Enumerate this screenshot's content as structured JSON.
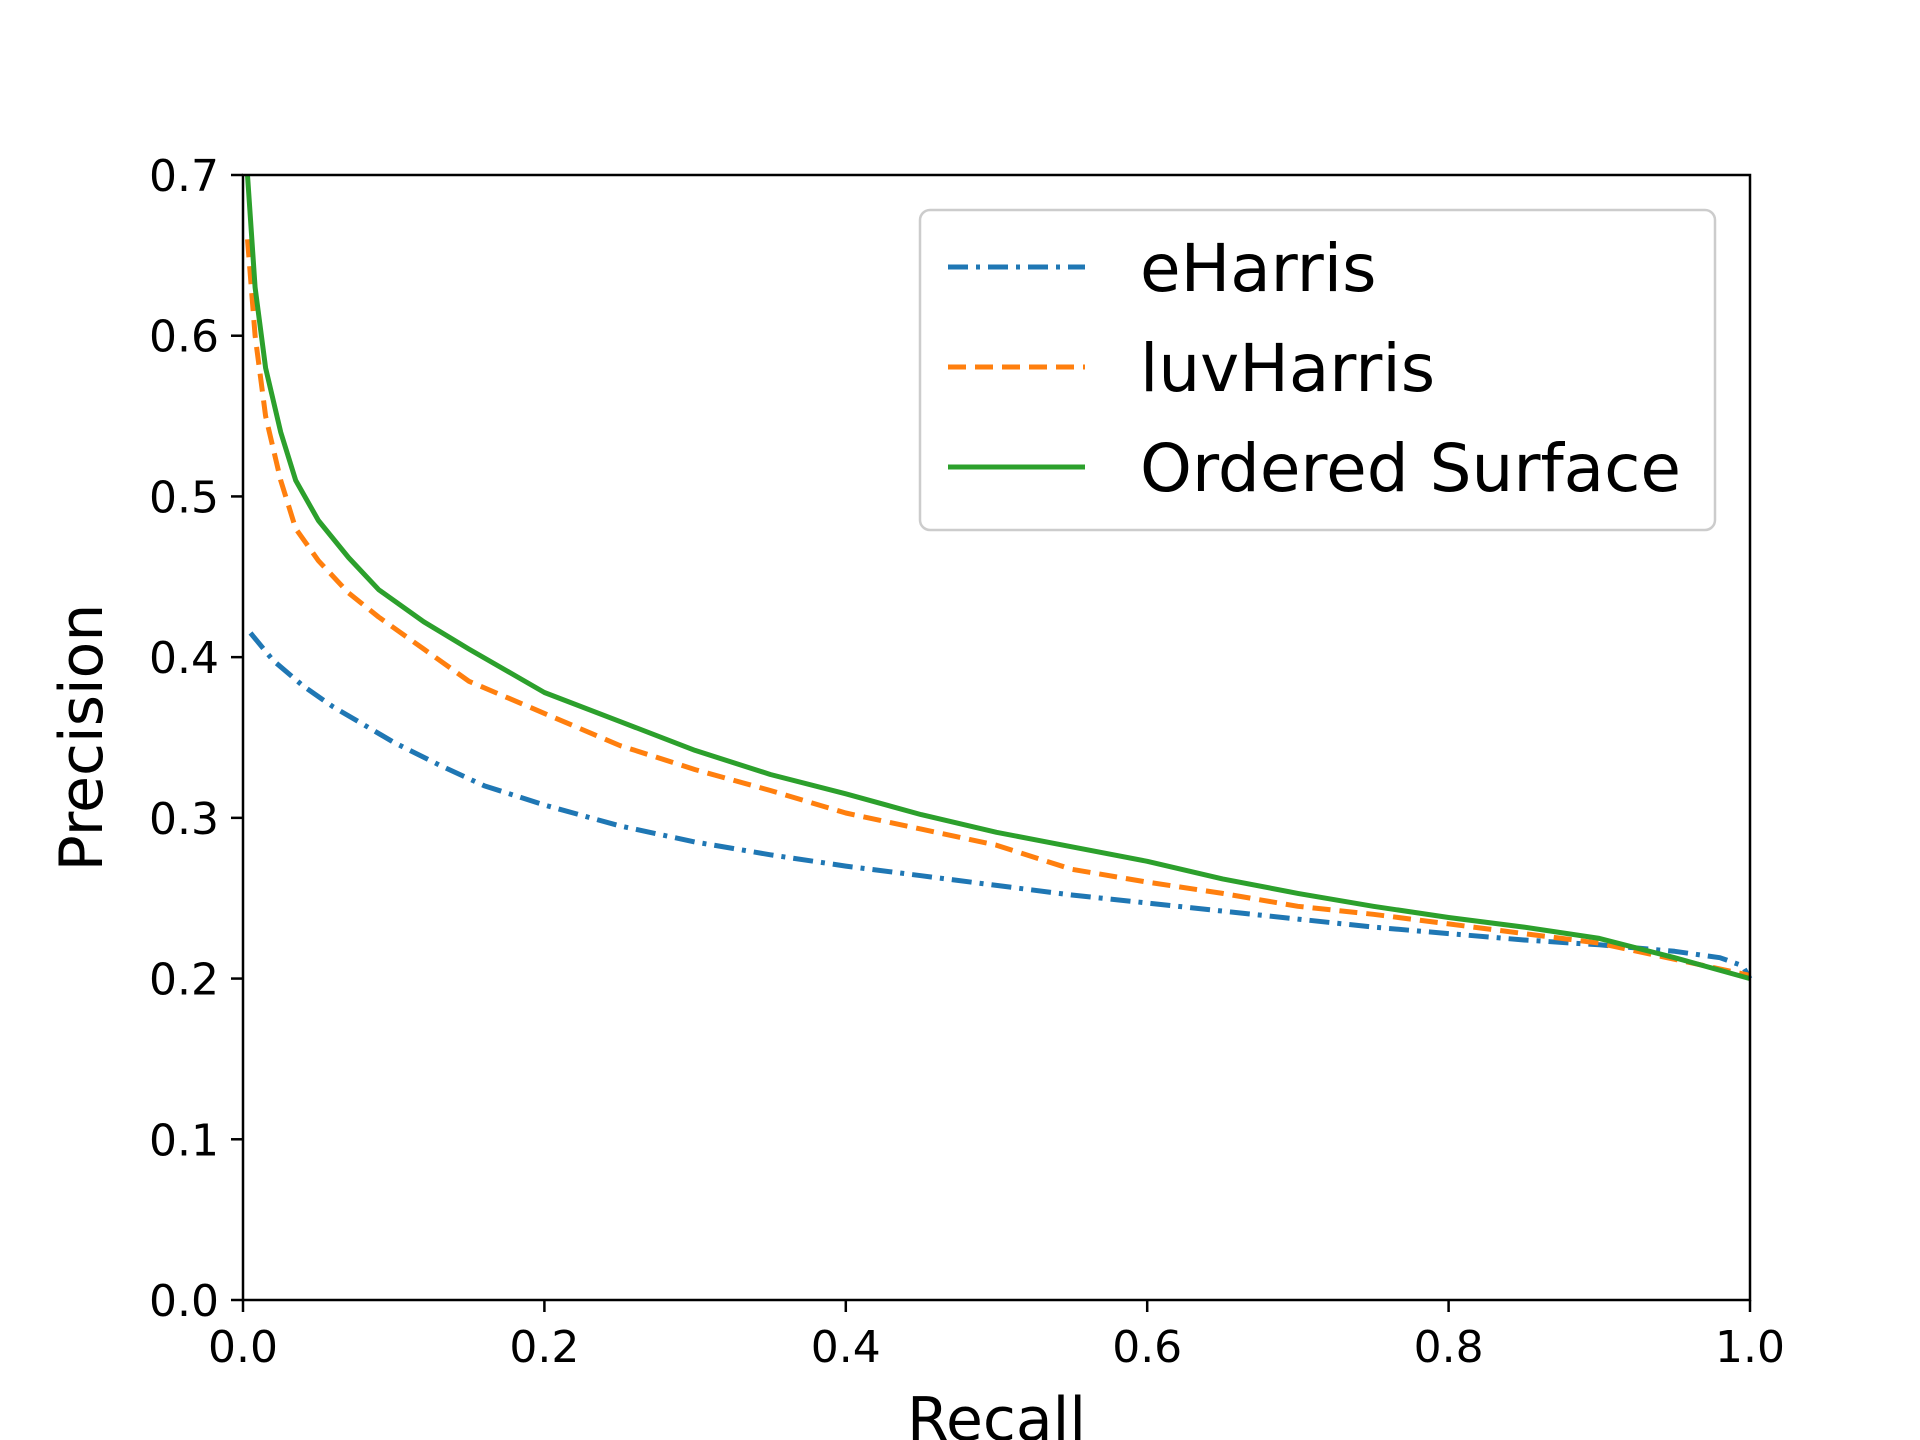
{
  "chart_data": {
    "type": "line",
    "xlabel": "Recall",
    "ylabel": "Precision",
    "xlim": [
      0.0,
      1.0
    ],
    "ylim": [
      0.0,
      0.7
    ],
    "xticks": [
      "0.0",
      "0.2",
      "0.4",
      "0.6",
      "0.8",
      "1.0"
    ],
    "yticks": [
      "0.0",
      "0.1",
      "0.2",
      "0.3",
      "0.4",
      "0.5",
      "0.6",
      "0.7"
    ],
    "grid": false,
    "legend_position": "top-right",
    "series": [
      {
        "name": "eHarris",
        "color": "#1f77b4",
        "style": "dashdot",
        "x": [
          0.005,
          0.02,
          0.04,
          0.06,
          0.08,
          0.1,
          0.13,
          0.16,
          0.2,
          0.25,
          0.3,
          0.35,
          0.4,
          0.45,
          0.5,
          0.55,
          0.6,
          0.65,
          0.7,
          0.75,
          0.8,
          0.85,
          0.9,
          0.95,
          0.98,
          0.995,
          1.0
        ],
        "y": [
          0.415,
          0.398,
          0.382,
          0.369,
          0.358,
          0.347,
          0.333,
          0.32,
          0.308,
          0.295,
          0.285,
          0.277,
          0.27,
          0.264,
          0.258,
          0.252,
          0.247,
          0.242,
          0.237,
          0.232,
          0.228,
          0.224,
          0.221,
          0.217,
          0.213,
          0.208,
          0.2
        ]
      },
      {
        "name": "luvHarris",
        "color": "#ff7f0e",
        "style": "dashed",
        "x": [
          0.003,
          0.008,
          0.015,
          0.025,
          0.035,
          0.05,
          0.07,
          0.09,
          0.12,
          0.15,
          0.2,
          0.25,
          0.3,
          0.35,
          0.4,
          0.45,
          0.5,
          0.55,
          0.6,
          0.65,
          0.7,
          0.75,
          0.8,
          0.85,
          0.9,
          0.95,
          1.0
        ],
        "y": [
          0.66,
          0.6,
          0.55,
          0.51,
          0.48,
          0.46,
          0.44,
          0.425,
          0.405,
          0.385,
          0.365,
          0.345,
          0.33,
          0.317,
          0.303,
          0.293,
          0.283,
          0.268,
          0.26,
          0.253,
          0.245,
          0.24,
          0.234,
          0.228,
          0.222,
          0.212,
          0.202
        ]
      },
      {
        "name": "Ordered Surface",
        "color": "#2ca02c",
        "style": "solid",
        "x": [
          0.003,
          0.008,
          0.015,
          0.025,
          0.035,
          0.05,
          0.07,
          0.09,
          0.12,
          0.15,
          0.2,
          0.25,
          0.3,
          0.35,
          0.4,
          0.45,
          0.5,
          0.55,
          0.6,
          0.65,
          0.7,
          0.75,
          0.8,
          0.85,
          0.9,
          0.95,
          1.0
        ],
        "y": [
          0.7,
          0.63,
          0.58,
          0.54,
          0.51,
          0.485,
          0.462,
          0.442,
          0.422,
          0.405,
          0.378,
          0.36,
          0.342,
          0.327,
          0.315,
          0.302,
          0.291,
          0.282,
          0.273,
          0.262,
          0.253,
          0.245,
          0.238,
          0.232,
          0.225,
          0.213,
          0.2
        ]
      }
    ]
  }
}
